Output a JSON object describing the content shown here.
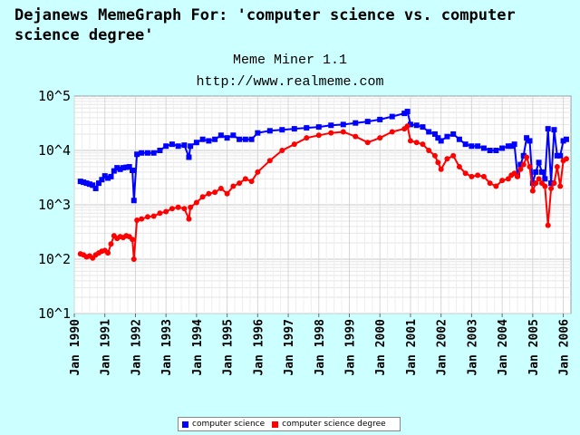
{
  "chart_data": {
    "type": "line",
    "title": "Dejanews MemeGraph For: 'computer science vs. computer science degree'",
    "subtitle": [
      "Meme Miner 1.1",
      "http://www.realmeme.com"
    ],
    "xlabel": "",
    "ylabel": "",
    "yscale": "log",
    "ylim": [
      10,
      100000
    ],
    "xlim": [
      1990.0,
      2006.25
    ],
    "y_tick_labels": [
      "10^1",
      "10^2",
      "10^3",
      "10^4",
      "10^5"
    ],
    "y_tick_values": [
      10,
      100,
      1000,
      10000,
      100000
    ],
    "x_tick_labels": [
      "Jan 1990",
      "Jan 1991",
      "Jan 1992",
      "Jan 1993",
      "Jan 1994",
      "Jan 1995",
      "Jan 1996",
      "Jan 1997",
      "Jan 1998",
      "Jan 1999",
      "Jan 2000",
      "Jan 2001",
      "Jan 2002",
      "Jan 2003",
      "Jan 2004",
      "Jan 2005",
      "Jan 2006"
    ],
    "x_tick_values": [
      1990,
      1991,
      1992,
      1993,
      1994,
      1995,
      1996,
      1997,
      1998,
      1999,
      2000,
      2001,
      2002,
      2003,
      2004,
      2005,
      2006
    ],
    "grid": true,
    "legend_position": "bottom-center",
    "series": [
      {
        "name": "computer science",
        "color": "#0000ff",
        "marker": "square",
        "x": [
          1990.2,
          1990.3,
          1990.4,
          1990.5,
          1990.6,
          1990.7,
          1990.8,
          1990.9,
          1991.0,
          1991.1,
          1991.2,
          1991.3,
          1991.4,
          1991.5,
          1991.6,
          1991.7,
          1991.8,
          1991.9,
          1991.95,
          1992.05,
          1992.2,
          1992.4,
          1992.6,
          1992.8,
          1993.0,
          1993.2,
          1993.4,
          1993.6,
          1993.75,
          1993.8,
          1994.0,
          1994.2,
          1994.4,
          1994.6,
          1994.8,
          1995.0,
          1995.2,
          1995.4,
          1995.6,
          1995.8,
          1996.0,
          1996.4,
          1996.8,
          1997.2,
          1997.6,
          1998.0,
          1998.4,
          1998.8,
          1999.2,
          1999.6,
          2000.0,
          2000.4,
          2000.8,
          2000.9,
          2001.0,
          2001.2,
          2001.4,
          2001.6,
          2001.8,
          2001.9,
          2002.0,
          2002.2,
          2002.4,
          2002.6,
          2002.8,
          2003.0,
          2003.2,
          2003.4,
          2003.6,
          2003.8,
          2004.0,
          2004.2,
          2004.3,
          2004.4,
          2004.5,
          2004.6,
          2004.7,
          2004.8,
          2004.9,
          2005.0,
          2005.1,
          2005.2,
          2005.3,
          2005.4,
          2005.5,
          2005.6,
          2005.7,
          2005.8,
          2005.9,
          2006.0,
          2006.1
        ],
        "y": [
          2700,
          2600,
          2500,
          2400,
          2300,
          2000,
          2500,
          2900,
          3400,
          3100,
          3300,
          4200,
          4800,
          4500,
          4800,
          4900,
          5000,
          4300,
          1200,
          8500,
          9000,
          9000,
          9000,
          10000,
          12000,
          13000,
          12000,
          12500,
          7500,
          12000,
          14000,
          16000,
          15000,
          16000,
          19000,
          17000,
          19000,
          16000,
          16000,
          16000,
          21000,
          23000,
          24000,
          25000,
          26000,
          27000,
          29000,
          30000,
          32000,
          34000,
          37000,
          42000,
          48000,
          52000,
          30000,
          29000,
          27000,
          22000,
          20000,
          17000,
          15000,
          18000,
          20000,
          16000,
          13000,
          12000,
          12000,
          11000,
          10000,
          10000,
          11000,
          12000,
          12000,
          13000,
          3500,
          5500,
          8000,
          17000,
          15000,
          2500,
          4000,
          6000,
          4000,
          3000,
          25000,
          2500,
          24000,
          8000,
          8000,
          15000,
          16000
        ]
      },
      {
        "name": "computer science degree",
        "color": "#ff0000",
        "marker": "circle",
        "x": [
          1990.2,
          1990.3,
          1990.4,
          1990.5,
          1990.6,
          1990.7,
          1990.8,
          1990.9,
          1991.0,
          1991.1,
          1991.2,
          1991.3,
          1991.4,
          1991.5,
          1991.6,
          1991.7,
          1991.8,
          1991.9,
          1991.95,
          1992.05,
          1992.2,
          1992.4,
          1992.6,
          1992.8,
          1993.0,
          1993.2,
          1993.4,
          1993.6,
          1993.75,
          1993.8,
          1994.0,
          1994.2,
          1994.4,
          1994.6,
          1994.8,
          1995.0,
          1995.2,
          1995.4,
          1995.6,
          1995.8,
          1996.0,
          1996.4,
          1996.8,
          1997.2,
          1997.6,
          1998.0,
          1998.4,
          1998.8,
          1999.2,
          1999.6,
          2000.0,
          2000.4,
          2000.8,
          2000.9,
          2001.0,
          2001.2,
          2001.4,
          2001.6,
          2001.8,
          2001.9,
          2002.0,
          2002.2,
          2002.4,
          2002.6,
          2002.8,
          2003.0,
          2003.2,
          2003.4,
          2003.6,
          2003.8,
          2004.0,
          2004.2,
          2004.3,
          2004.4,
          2004.5,
          2004.6,
          2004.7,
          2004.8,
          2004.9,
          2005.0,
          2005.1,
          2005.2,
          2005.3,
          2005.4,
          2005.5,
          2005.6,
          2005.7,
          2005.8,
          2005.9,
          2006.0,
          2006.1
        ],
        "y": [
          125,
          120,
          110,
          115,
          105,
          120,
          130,
          140,
          145,
          130,
          190,
          270,
          240,
          260,
          250,
          270,
          260,
          230,
          100,
          520,
          550,
          600,
          620,
          700,
          750,
          850,
          900,
          850,
          550,
          900,
          1100,
          1400,
          1600,
          1700,
          2000,
          1600,
          2200,
          2500,
          3000,
          2700,
          4000,
          6500,
          10000,
          13000,
          17000,
          19000,
          21000,
          22000,
          18000,
          14000,
          17000,
          22000,
          25000,
          28000,
          15000,
          14000,
          13000,
          10000,
          8000,
          6000,
          4500,
          7000,
          8000,
          5000,
          3800,
          3300,
          3500,
          3300,
          2500,
          2200,
          2800,
          3000,
          3500,
          3800,
          3300,
          4500,
          5500,
          7500,
          5000,
          1800,
          2500,
          3000,
          2500,
          2200,
          420,
          2000,
          2500,
          5000,
          2200,
          6500,
          7000
        ]
      }
    ]
  }
}
